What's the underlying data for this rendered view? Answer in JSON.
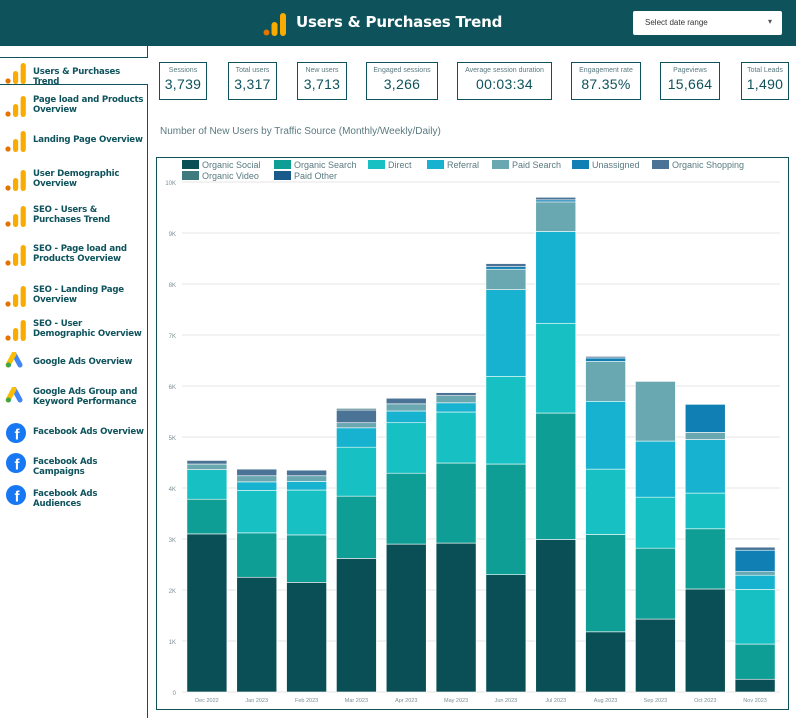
{
  "header": {
    "title": "Users & Purchases Trend",
    "date_range_label": "Select date range"
  },
  "sidebar": {
    "items": [
      {
        "label": "Users & Purchases Trend",
        "icon": "analytics-icon",
        "active": true
      },
      {
        "label": "Page load and Products Overview",
        "icon": "analytics-icon"
      },
      {
        "label": "Landing Page Overview",
        "icon": "analytics-icon"
      },
      {
        "label": "User Demographic Overview",
        "icon": "analytics-icon"
      },
      {
        "label": "SEO - Users & Purchases Trend",
        "icon": "analytics-icon"
      },
      {
        "label": "SEO - Page load and Products Overview",
        "icon": "analytics-icon"
      },
      {
        "label": "SEO - Landing Page Overview",
        "icon": "analytics-icon"
      },
      {
        "label": "SEO - User Demographic Overview",
        "icon": "analytics-icon"
      },
      {
        "label": "Google Ads Overview",
        "icon": "google-ads-icon"
      },
      {
        "label": "Google Ads Group and Keyword Performance",
        "icon": "google-ads-icon"
      },
      {
        "label": "Facebook Ads Overview",
        "icon": "facebook-icon"
      },
      {
        "label": "Facebook Ads Campaigns",
        "icon": "facebook-icon"
      },
      {
        "label": "Facebook Ads Audiences",
        "icon": "facebook-icon"
      }
    ]
  },
  "kpis": [
    {
      "label": "Sessions",
      "value": "3,739"
    },
    {
      "label": "Total users",
      "value": "3,317"
    },
    {
      "label": "New users",
      "value": "3,713"
    },
    {
      "label": "Engaged sessions",
      "value": "3,266"
    },
    {
      "label": "Average session duration",
      "value": "00:03:34"
    },
    {
      "label": "Engagement rate",
      "value": "87.35%"
    },
    {
      "label": "Pageviews",
      "value": "15,664"
    },
    {
      "label": "Total Leads",
      "value": "1,490"
    }
  ],
  "chart_title": "Number of New Users by Traffic Source (Monthly/Weekly/Daily)",
  "colors": {
    "brand": "#0e535c",
    "logo_orange": "#f9ab00",
    "logo_dark_orange": "#e37400"
  },
  "chart_data": {
    "type": "bar",
    "stacked": true,
    "categories": [
      "Dec 2022",
      "Jan 2023",
      "Feb 2023",
      "Mar 2023",
      "Apr 2023",
      "May 2023",
      "Jun 2023",
      "Jul 2023",
      "Aug 2023",
      "Sep 2023",
      "Oct 2023",
      "Nov 2023"
    ],
    "ylim": [
      0,
      10000
    ],
    "yticks": [
      0,
      1000,
      2000,
      3000,
      4000,
      5000,
      6000,
      7000,
      8000,
      9000,
      10000
    ],
    "ytick_labels": [
      "0",
      "1K",
      "2K",
      "3K",
      "4K",
      "5K",
      "6K",
      "7K",
      "8K",
      "9K",
      "10K"
    ],
    "legend_position": "top-left",
    "grid": true,
    "series": [
      {
        "name": "Organic Social",
        "color": "#0a4f56",
        "values": [
          3100,
          2250,
          2150,
          2620,
          2900,
          2920,
          2300,
          2990,
          1180,
          1430,
          2020,
          250
        ]
      },
      {
        "name": "Organic Search",
        "color": "#0e9e96",
        "values": [
          680,
          870,
          930,
          1220,
          1390,
          1570,
          2170,
          2480,
          1910,
          1390,
          1180,
          690
        ]
      },
      {
        "name": "Direct",
        "color": "#17c1c3",
        "values": [
          580,
          830,
          880,
          960,
          990,
          1000,
          1720,
          1760,
          1280,
          1000,
          700,
          1070
        ]
      },
      {
        "name": "Referral",
        "color": "#16b2cf",
        "values": [
          0,
          170,
          170,
          380,
          230,
          180,
          1700,
          1800,
          1330,
          1100,
          1050,
          280
        ]
      },
      {
        "name": "Paid Search",
        "color": "#6aa8b1",
        "values": [
          110,
          120,
          110,
          100,
          140,
          140,
          400,
          580,
          780,
          1170,
          140,
          70
        ]
      },
      {
        "name": "Unassigned",
        "color": "#107fb3",
        "values": [
          0,
          0,
          0,
          0,
          0,
          0,
          50,
          40,
          70,
          0,
          550,
          420
        ]
      },
      {
        "name": "Organic Shopping",
        "color": "#4a7396",
        "values": [
          70,
          130,
          110,
          250,
          110,
          60,
          60,
          50,
          30,
          0,
          0,
          60
        ]
      },
      {
        "name": "Organic Video",
        "color": "#3f7a7f",
        "values": [
          0,
          0,
          0,
          30,
          0,
          0,
          0,
          0,
          0,
          0,
          0,
          0
        ]
      },
      {
        "name": "Paid Other",
        "color": "#1a5a8a",
        "values": [
          0,
          0,
          0,
          0,
          0,
          0,
          0,
          0,
          0,
          0,
          0,
          0
        ]
      }
    ]
  }
}
